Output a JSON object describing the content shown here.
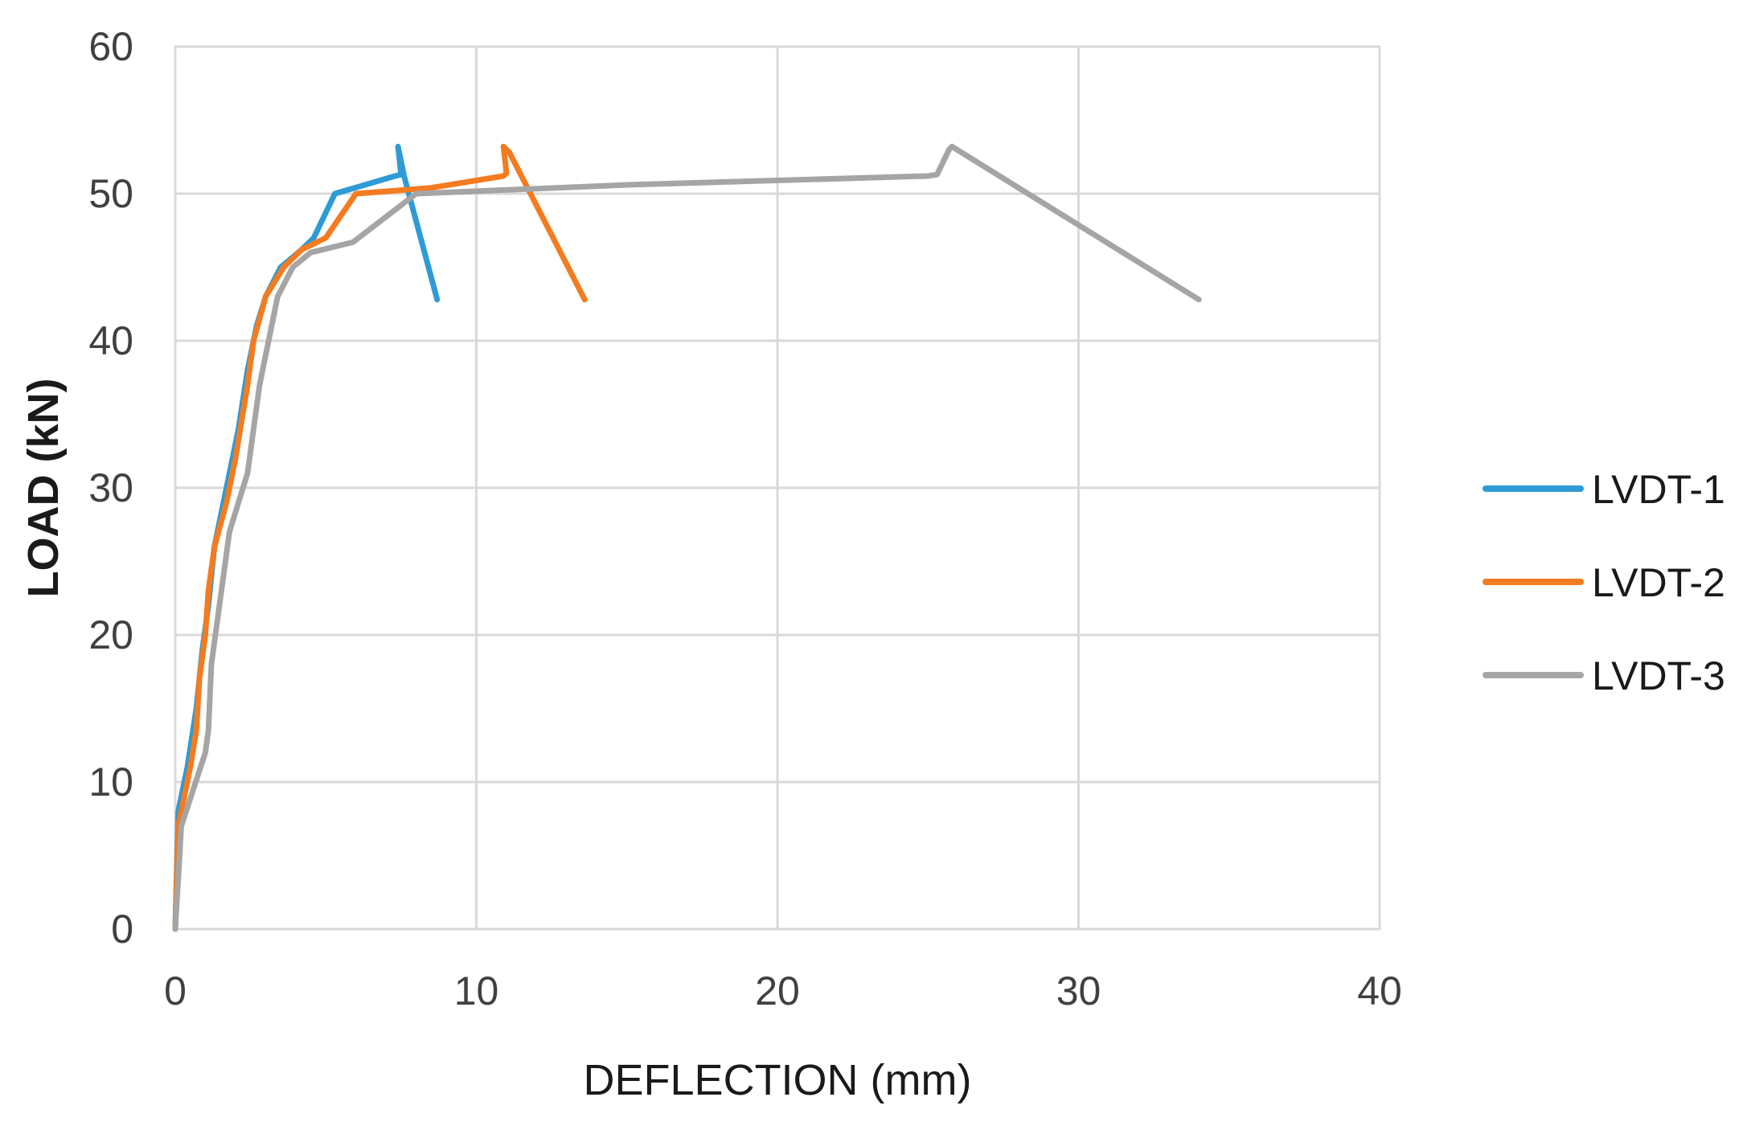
{
  "chart_data": {
    "type": "line",
    "title": "",
    "xlabel": "DEFLECTION (mm)",
    "ylabel": "LOAD (kN)",
    "xlim": [
      0,
      40
    ],
    "ylim": [
      0,
      60
    ],
    "xticks": [
      0,
      10,
      20,
      30,
      40
    ],
    "yticks": [
      0,
      10,
      20,
      30,
      40,
      50,
      60
    ],
    "xtick_labels": [
      "0",
      "10",
      "20",
      "30",
      "40"
    ],
    "ytick_labels": [
      "0",
      "10",
      "20",
      "30",
      "40",
      "50",
      "60"
    ],
    "grid": true,
    "legend_position": "right",
    "series": [
      {
        "name": "LVDT-1",
        "color": "#2e9bd6",
        "points": [
          [
            0,
            0
          ],
          [
            0.1,
            8
          ],
          [
            0.4,
            11
          ],
          [
            0.7,
            15
          ],
          [
            0.9,
            19
          ],
          [
            1.1,
            22
          ],
          [
            1.3,
            26
          ],
          [
            1.7,
            30
          ],
          [
            2.1,
            34
          ],
          [
            2.4,
            38
          ],
          [
            2.7,
            41
          ],
          [
            3.0,
            43
          ],
          [
            3.5,
            45
          ],
          [
            4.2,
            46.2
          ],
          [
            4.6,
            47
          ],
          [
            5.3,
            50
          ],
          [
            7.3,
            51.2
          ],
          [
            7.5,
            51.3
          ],
          [
            7.4,
            53.2
          ],
          [
            7.6,
            51.2
          ],
          [
            8.7,
            42.8
          ]
        ]
      },
      {
        "name": "LVDT-2",
        "color": "#f47b20",
        "points": [
          [
            0,
            0
          ],
          [
            0.1,
            7
          ],
          [
            0.5,
            11
          ],
          [
            0.7,
            13.5
          ],
          [
            0.8,
            17
          ],
          [
            1.0,
            20
          ],
          [
            1.1,
            23
          ],
          [
            1.3,
            26
          ],
          [
            1.7,
            29
          ],
          [
            2.0,
            32
          ],
          [
            2.2,
            34.5
          ],
          [
            2.4,
            37
          ],
          [
            2.6,
            40
          ],
          [
            3.0,
            43
          ],
          [
            3.6,
            45
          ],
          [
            4.2,
            46.2
          ],
          [
            5.0,
            47
          ],
          [
            6.0,
            50
          ],
          [
            8.5,
            50.4
          ],
          [
            10.9,
            51.2
          ],
          [
            11.0,
            51.4
          ],
          [
            10.9,
            53.2
          ],
          [
            11.1,
            52.8
          ],
          [
            13.6,
            42.8
          ]
        ]
      },
      {
        "name": "LVDT-3",
        "color": "#a5a5a5",
        "points": [
          [
            0,
            0
          ],
          [
            0.2,
            7
          ],
          [
            1.0,
            12
          ],
          [
            1.1,
            13.5
          ],
          [
            1.2,
            18
          ],
          [
            1.4,
            21
          ],
          [
            1.6,
            24
          ],
          [
            1.8,
            27
          ],
          [
            2.1,
            29
          ],
          [
            2.4,
            31
          ],
          [
            2.6,
            34
          ],
          [
            2.8,
            37
          ],
          [
            3.1,
            40
          ],
          [
            3.4,
            43
          ],
          [
            3.9,
            45
          ],
          [
            4.5,
            46
          ],
          [
            5.9,
            46.7
          ],
          [
            8.0,
            50
          ],
          [
            15,
            50.6
          ],
          [
            25.0,
            51.2
          ],
          [
            25.3,
            51.3
          ],
          [
            25.7,
            53
          ],
          [
            25.8,
            53.2
          ],
          [
            34.0,
            42.8
          ]
        ]
      }
    ]
  }
}
